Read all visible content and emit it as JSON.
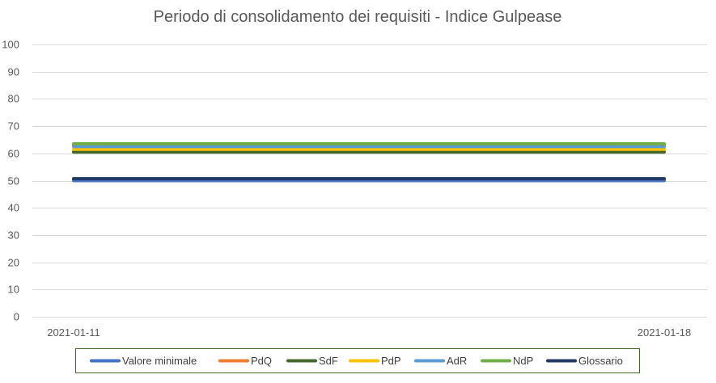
{
  "chart_data": {
    "type": "line",
    "title": "Periodo di consolidamento dei requisiti - Indice Gulpease",
    "xlabel": "",
    "ylabel": "",
    "x": [
      "2021-01-11",
      "2021-01-18"
    ],
    "ylim": [
      0,
      100
    ],
    "yticks": [
      0,
      10,
      20,
      30,
      40,
      50,
      60,
      70,
      80,
      90,
      100
    ],
    "grid": true,
    "legend_position": "bottom",
    "series": [
      {
        "name": "Valore minimale",
        "values": [
          50,
          50
        ],
        "color": "#4472c4"
      },
      {
        "name": "PdQ",
        "values": [
          63,
          63
        ],
        "color": "#ed7d31"
      },
      {
        "name": "SdF",
        "values": [
          60.5,
          60.5
        ],
        "color": "#43682b"
      },
      {
        "name": "PdP",
        "values": [
          61.5,
          61.5
        ],
        "color": "#ffc000"
      },
      {
        "name": "AdR",
        "values": [
          62.5,
          62.5
        ],
        "color": "#5b9bd5"
      },
      {
        "name": "NdP",
        "values": [
          63.5,
          63.5
        ],
        "color": "#70ad47"
      },
      {
        "name": "Glossario",
        "values": [
          50.7,
          50.7
        ],
        "color": "#203864"
      }
    ]
  }
}
